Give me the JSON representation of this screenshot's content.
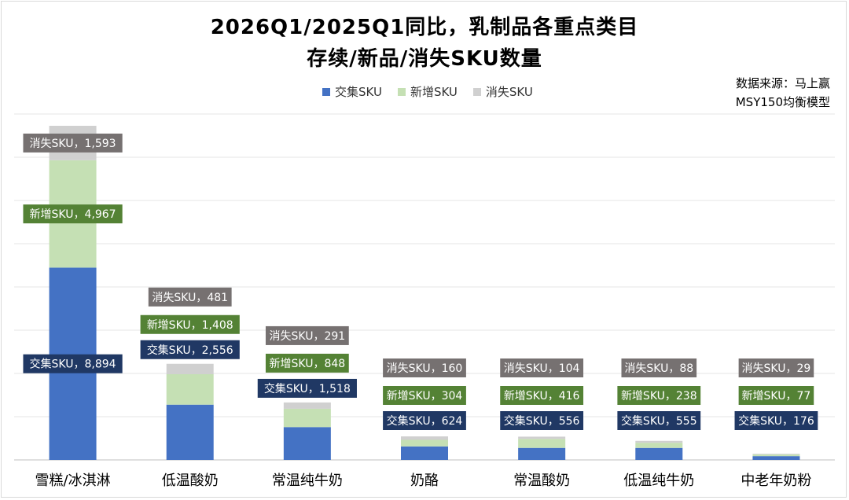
{
  "title_line1": "2026Q1/2025Q1同比，乳制品各重点类目",
  "title_line2": "存续/新品/消失SKU数量",
  "source_line1": "数据来源：马上赢",
  "source_line2": "MSY150均衡模型",
  "colors": {
    "continuing": "#4472c4",
    "new": "#c5e0b4",
    "disappeared": "#d0d0d0",
    "label_continuing_bg": "#203864",
    "label_new_bg": "#548235",
    "label_disappeared_bg": "#767171"
  },
  "chart_data": {
    "type": "bar",
    "stacked": true,
    "title": "2026Q1/2025Q1同比，乳制品各重点类目 存续/新品/消失SKU数量",
    "categories": [
      "雪糕/冰淇淋",
      "低温酸奶",
      "常温纯牛奶",
      "奶酪",
      "常温酸奶",
      "低温纯牛奶",
      "中老年奶粉"
    ],
    "series": [
      {
        "name": "交集SKU",
        "values": [
          8894,
          2556,
          1518,
          624,
          556,
          555,
          176
        ]
      },
      {
        "name": "新增SKU",
        "values": [
          4967,
          1408,
          848,
          304,
          416,
          238,
          77
        ]
      },
      {
        "name": "消失SKU",
        "values": [
          1593,
          481,
          291,
          160,
          104,
          88,
          29
        ]
      }
    ],
    "data_labels": [
      [
        "交集SKU，8,894",
        "交集SKU，2,556",
        "交集SKU，1,518",
        "交集SKU，624",
        "交集SKU，556",
        "交集SKU，555",
        "交集SKU，176"
      ],
      [
        "新增SKU，4,967",
        "新增SKU，1,408",
        "新增SKU，848",
        "新增SKU，304",
        "新增SKU，416",
        "新增SKU，238",
        "新增SKU，77"
      ],
      [
        "消失SKU，1,593",
        "消失SKU，481",
        "消失SKU，291",
        "消失SKU，160",
        "消失SKU，104",
        "消失SKU，88",
        "消失SKU，29"
      ]
    ],
    "ylim": [
      0,
      16000
    ],
    "grid": true,
    "legend": "top-center"
  }
}
